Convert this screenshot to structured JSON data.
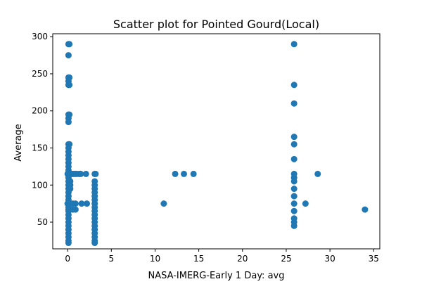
{
  "chart_data": {
    "type": "scatter",
    "title": "Scatter plot for Pointed Gourd(Local)",
    "xlabel": "NASA-IMERG-Early 1 Day: avg",
    "ylabel": "Average",
    "xlim": [
      -1.7,
      35.7
    ],
    "ylim": [
      14,
      304
    ],
    "xticks": [
      0,
      5,
      10,
      15,
      20,
      25,
      30,
      35
    ],
    "yticks": [
      50,
      100,
      150,
      200,
      250,
      300
    ],
    "grid": false,
    "marker_color": "#1f77b4",
    "points": [
      [
        0.1,
        290
      ],
      [
        0.2,
        290
      ],
      [
        0.1,
        275
      ],
      [
        0.1,
        245
      ],
      [
        0.2,
        245
      ],
      [
        0.1,
        240
      ],
      [
        0.1,
        235
      ],
      [
        0.2,
        235
      ],
      [
        0.1,
        195
      ],
      [
        0.2,
        195
      ],
      [
        0.1,
        190
      ],
      [
        0.1,
        185
      ],
      [
        0.1,
        155
      ],
      [
        0.2,
        155
      ],
      [
        0.1,
        150
      ],
      [
        0.1,
        145
      ],
      [
        0.1,
        140
      ],
      [
        0.1,
        135
      ],
      [
        0.1,
        130
      ],
      [
        0.1,
        125
      ],
      [
        0.1,
        120
      ],
      [
        0.0,
        115
      ],
      [
        0.2,
        115
      ],
      [
        0.4,
        115
      ],
      [
        0.6,
        115
      ],
      [
        0.8,
        115
      ],
      [
        1.0,
        115
      ],
      [
        1.3,
        115
      ],
      [
        1.5,
        115
      ],
      [
        2.1,
        115
      ],
      [
        3.1,
        115
      ],
      [
        3.2,
        115
      ],
      [
        0.1,
        110
      ],
      [
        0.1,
        105
      ],
      [
        0.3,
        105
      ],
      [
        0.1,
        100
      ],
      [
        0.3,
        100
      ],
      [
        0.1,
        95
      ],
      [
        0.3,
        95
      ],
      [
        0.1,
        90
      ],
      [
        0.1,
        85
      ],
      [
        0.1,
        80
      ],
      [
        0.0,
        75
      ],
      [
        0.3,
        75
      ],
      [
        0.6,
        75
      ],
      [
        0.9,
        75
      ],
      [
        1.6,
        75
      ],
      [
        2.2,
        75
      ],
      [
        0.1,
        70
      ],
      [
        0.1,
        67
      ],
      [
        0.6,
        67
      ],
      [
        0.9,
        67
      ],
      [
        0.1,
        65
      ],
      [
        0.1,
        60
      ],
      [
        0.1,
        55
      ],
      [
        0.1,
        50
      ],
      [
        0.1,
        45
      ],
      [
        0.1,
        40
      ],
      [
        0.1,
        35
      ],
      [
        0.1,
        30
      ],
      [
        0.1,
        25
      ],
      [
        0.1,
        22
      ],
      [
        3.1,
        105
      ],
      [
        3.1,
        100
      ],
      [
        3.1,
        95
      ],
      [
        3.1,
        90
      ],
      [
        3.1,
        85
      ],
      [
        3.1,
        80
      ],
      [
        3.1,
        75
      ],
      [
        3.1,
        70
      ],
      [
        3.1,
        65
      ],
      [
        3.1,
        60
      ],
      [
        3.1,
        55
      ],
      [
        3.1,
        50
      ],
      [
        3.1,
        45
      ],
      [
        3.1,
        40
      ],
      [
        3.1,
        35
      ],
      [
        3.1,
        30
      ],
      [
        3.1,
        25
      ],
      [
        3.1,
        22
      ],
      [
        11.0,
        75
      ],
      [
        12.3,
        115
      ],
      [
        13.3,
        115
      ],
      [
        14.4,
        115
      ],
      [
        25.9,
        290
      ],
      [
        25.9,
        235
      ],
      [
        25.9,
        210
      ],
      [
        25.9,
        165
      ],
      [
        25.9,
        155
      ],
      [
        25.9,
        135
      ],
      [
        25.9,
        115
      ],
      [
        25.9,
        110
      ],
      [
        25.9,
        105
      ],
      [
        25.9,
        95
      ],
      [
        25.9,
        85
      ],
      [
        25.9,
        75
      ],
      [
        25.9,
        65
      ],
      [
        25.9,
        55
      ],
      [
        25.9,
        50
      ],
      [
        25.9,
        45
      ],
      [
        27.2,
        75
      ],
      [
        28.6,
        115
      ],
      [
        34.0,
        67
      ]
    ]
  }
}
